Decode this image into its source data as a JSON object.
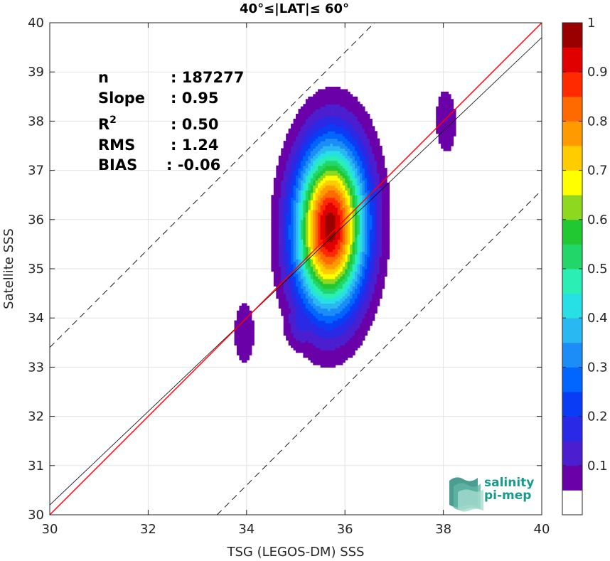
{
  "chart_data": {
    "type": "scatter",
    "title": "40°≤|LAT|≤ 60°",
    "xlabel": "TSG (LEGOS-DM) SSS",
    "ylabel": "Satellite SSS",
    "xlim": [
      30,
      40
    ],
    "ylim": [
      30,
      40
    ],
    "xticks": [
      30,
      32,
      34,
      36,
      38,
      40
    ],
    "yticks": [
      30,
      31,
      32,
      33,
      34,
      35,
      36,
      37,
      38,
      39,
      40
    ],
    "stats": [
      {
        "label": "n",
        "sep": ":",
        "value": "187277"
      },
      {
        "label": "Slope",
        "sep": ":",
        "value": "0.95"
      },
      {
        "label": "R",
        "sup": "2",
        "sep": ":",
        "value": "0.50"
      },
      {
        "label": "RMS",
        "sep": ":",
        "value": "1.24"
      },
      {
        "label": "BIAS",
        "sep": ":",
        "value": "-0.06"
      }
    ],
    "lines": {
      "identity": {
        "color": "#ff0000",
        "points": [
          [
            30,
            30
          ],
          [
            40,
            40
          ]
        ]
      },
      "fit": {
        "color": "#000000",
        "slope": 0.95,
        "intercept": 1.7
      },
      "bounds": {
        "color": "#000000",
        "offset": 3.4,
        "dashed": true
      }
    },
    "density_levels": [
      0.05,
      0.1,
      0.15,
      0.2,
      0.25,
      0.3,
      0.35,
      0.4,
      0.45,
      0.5,
      0.55,
      0.6,
      0.65,
      0.7,
      0.75,
      0.8,
      0.85,
      0.9,
      0.95
    ],
    "density_clusters": [
      {
        "cx": 35.7,
        "cy": 35.85,
        "rx": 1.05,
        "ry": 2.45,
        "peak": 0.98,
        "tilt": 0.1
      },
      {
        "cx": 35.15,
        "cy": 34.0,
        "rx": 0.55,
        "ry": 0.95,
        "peak": 0.18,
        "tilt": 0.0
      },
      {
        "cx": 33.95,
        "cy": 33.7,
        "rx": 0.38,
        "ry": 1.15,
        "peak": 0.09,
        "tilt": 0.0
      },
      {
        "cx": 38.05,
        "cy": 38.0,
        "rx": 0.38,
        "ry": 1.2,
        "peak": 0.09,
        "tilt": -0.15
      }
    ],
    "colorbar": {
      "ticks": [
        "0.1",
        "0.2",
        "0.3",
        "0.4",
        "0.5",
        "0.6",
        "0.7",
        "0.8",
        "0.9",
        "1"
      ],
      "colors": [
        "#ffffff",
        "#6a00a8",
        "#4b1fcf",
        "#2a2ae6",
        "#0a3cf5",
        "#0066ff",
        "#1c8cf7",
        "#2ab8f2",
        "#26e0e6",
        "#2aeeb4",
        "#23d66a",
        "#22c832",
        "#8ed820",
        "#ffff00",
        "#ffcc00",
        "#ff9a00",
        "#ff6a00",
        "#ff2a00",
        "#e00000",
        "#9a0000"
      ]
    },
    "logo": {
      "line1": "salinity",
      "line2": "pi-mep",
      "color": "#1a9a8c"
    }
  }
}
